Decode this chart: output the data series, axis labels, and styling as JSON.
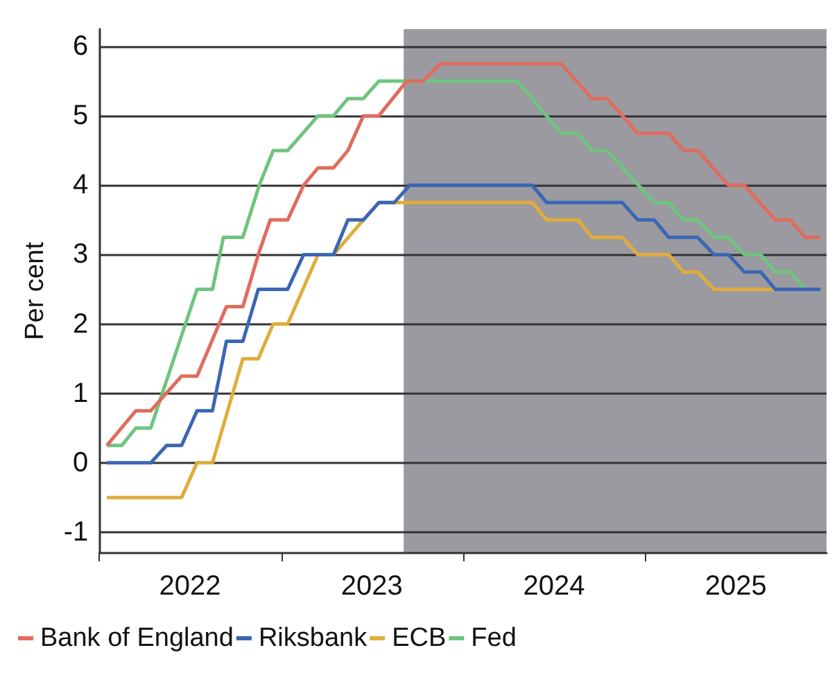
{
  "chart_data": {
    "type": "line",
    "ylabel": "Per cent",
    "xlim": [
      "2022-01-01",
      "2025-12-31"
    ],
    "ylim": [
      -1.3,
      6.25
    ],
    "yticks": [
      -1,
      0,
      1,
      2,
      3,
      4,
      5,
      6
    ],
    "xticks": [
      {
        "value": "2022-01-01",
        "label": null
      },
      {
        "value": "2022-07-02",
        "label": "2022"
      },
      {
        "value": "2023-01-01",
        "label": null
      },
      {
        "value": "2023-07-02",
        "label": "2023"
      },
      {
        "value": "2024-01-01",
        "label": null
      },
      {
        "value": "2024-07-02",
        "label": "2024"
      },
      {
        "value": "2025-01-01",
        "label": null
      },
      {
        "value": "2025-07-02",
        "label": "2025"
      }
    ],
    "grid": "y",
    "legend": "bottom left",
    "marker": "none",
    "line_style": "solid",
    "bands": [
      {
        "axis": "x",
        "from": "2023-09-04",
        "to": "2025-12-31",
        "color": "#9b9aa0"
      }
    ],
    "series": [
      {
        "name": "Bank of England",
        "color": "#e06c5e",
        "x": [
          "2022-01-16",
          "2022-03-15",
          "2022-04-14",
          "2022-06-15",
          "2022-07-16",
          "2022-09-13",
          "2022-10-16",
          "2022-11-16",
          "2022-12-10",
          "2023-01-14",
          "2023-02-15",
          "2023-03-16",
          "2023-04-16",
          "2023-05-15",
          "2023-06-15",
          "2023-07-16",
          "2023-09-10",
          "2023-10-13",
          "2023-11-16",
          "2024-07-16",
          "2024-09-16",
          "2024-10-16",
          "2024-12-17",
          "2025-02-17",
          "2025-03-19",
          "2025-04-16",
          "2025-06-17",
          "2025-07-19",
          "2025-09-19",
          "2025-10-19",
          "2025-11-18",
          "2025-12-19"
        ],
        "values": [
          0.25,
          0.75,
          0.75,
          1.25,
          1.25,
          2.25,
          2.25,
          3,
          3.5,
          3.5,
          4,
          4.25,
          4.25,
          4.5,
          5,
          5,
          5.5,
          5.5,
          5.75,
          5.75,
          5.25,
          5.25,
          4.75,
          4.75,
          4.5,
          4.5,
          4,
          4,
          3.5,
          3.5,
          3.25,
          3.25
        ]
      },
      {
        "name": "Riksbank",
        "color": "#3a67b5",
        "x": [
          "2022-01-16",
          "2022-04-14",
          "2022-05-16",
          "2022-06-15",
          "2022-07-16",
          "2022-08-16",
          "2022-09-13",
          "2022-10-16",
          "2022-11-16",
          "2023-01-14",
          "2023-02-15",
          "2023-04-16",
          "2023-05-15",
          "2023-06-15",
          "2023-07-16",
          "2023-08-16",
          "2023-09-16",
          "2024-05-19",
          "2024-06-17",
          "2024-11-16",
          "2024-12-17",
          "2025-01-19",
          "2025-02-17",
          "2025-04-16",
          "2025-05-19",
          "2025-06-17",
          "2025-07-19",
          "2025-08-21",
          "2025-09-19",
          "2025-12-19"
        ],
        "values": [
          0,
          0,
          0.25,
          0.25,
          0.75,
          0.75,
          1.75,
          1.75,
          2.5,
          2.5,
          3,
          3,
          3.5,
          3.5,
          3.75,
          3.75,
          4,
          4,
          3.75,
          3.75,
          3.5,
          3.5,
          3.25,
          3.25,
          3,
          3,
          2.75,
          2.75,
          2.5,
          2.5
        ]
      },
      {
        "name": "ECB",
        "color": "#e0ac3c",
        "x": [
          "2022-01-16",
          "2022-06-15",
          "2022-07-16",
          "2022-08-16",
          "2022-10-16",
          "2022-11-16",
          "2022-12-16",
          "2023-01-14",
          "2023-03-16",
          "2023-04-16",
          "2023-06-15",
          "2023-07-16",
          "2024-05-19",
          "2024-06-17",
          "2024-08-19",
          "2024-09-16",
          "2024-11-16",
          "2024-12-17",
          "2025-02-17",
          "2025-03-19",
          "2025-04-16",
          "2025-05-19",
          "2025-09-19"
        ],
        "values": [
          -0.5,
          -0.5,
          0,
          0,
          1.5,
          1.5,
          2,
          2,
          3,
          3,
          3.5,
          3.75,
          3.75,
          3.5,
          3.5,
          3.25,
          3.25,
          3,
          3,
          2.75,
          2.75,
          2.5,
          2.5
        ]
      },
      {
        "name": "Fed",
        "color": "#6fc47f",
        "x": [
          "2022-01-16",
          "2022-02-15",
          "2022-03-15",
          "2022-04-14",
          "2022-07-16",
          "2022-08-16",
          "2022-09-07",
          "2022-10-16",
          "2022-11-18",
          "2022-12-16",
          "2023-01-14",
          "2023-03-16",
          "2023-04-16",
          "2023-05-15",
          "2023-06-15",
          "2023-07-16",
          "2024-04-19",
          "2024-06-17",
          "2024-07-16",
          "2024-08-19",
          "2024-09-16",
          "2024-10-16",
          "2025-01-19",
          "2025-02-17",
          "2025-03-19",
          "2025-04-16",
          "2025-05-19",
          "2025-06-17",
          "2025-07-19",
          "2025-08-21",
          "2025-09-19",
          "2025-10-19",
          "2025-11-18"
        ],
        "values": [
          0.25,
          0.25,
          0.5,
          0.5,
          2.5,
          2.5,
          3.25,
          3.25,
          4,
          4.5,
          4.5,
          5,
          5,
          5.25,
          5.25,
          5.5,
          5.5,
          5,
          4.75,
          4.75,
          4.5,
          4.5,
          3.75,
          3.75,
          3.5,
          3.5,
          3.25,
          3.25,
          3,
          3,
          2.75,
          2.75,
          2.5
        ]
      }
    ]
  }
}
